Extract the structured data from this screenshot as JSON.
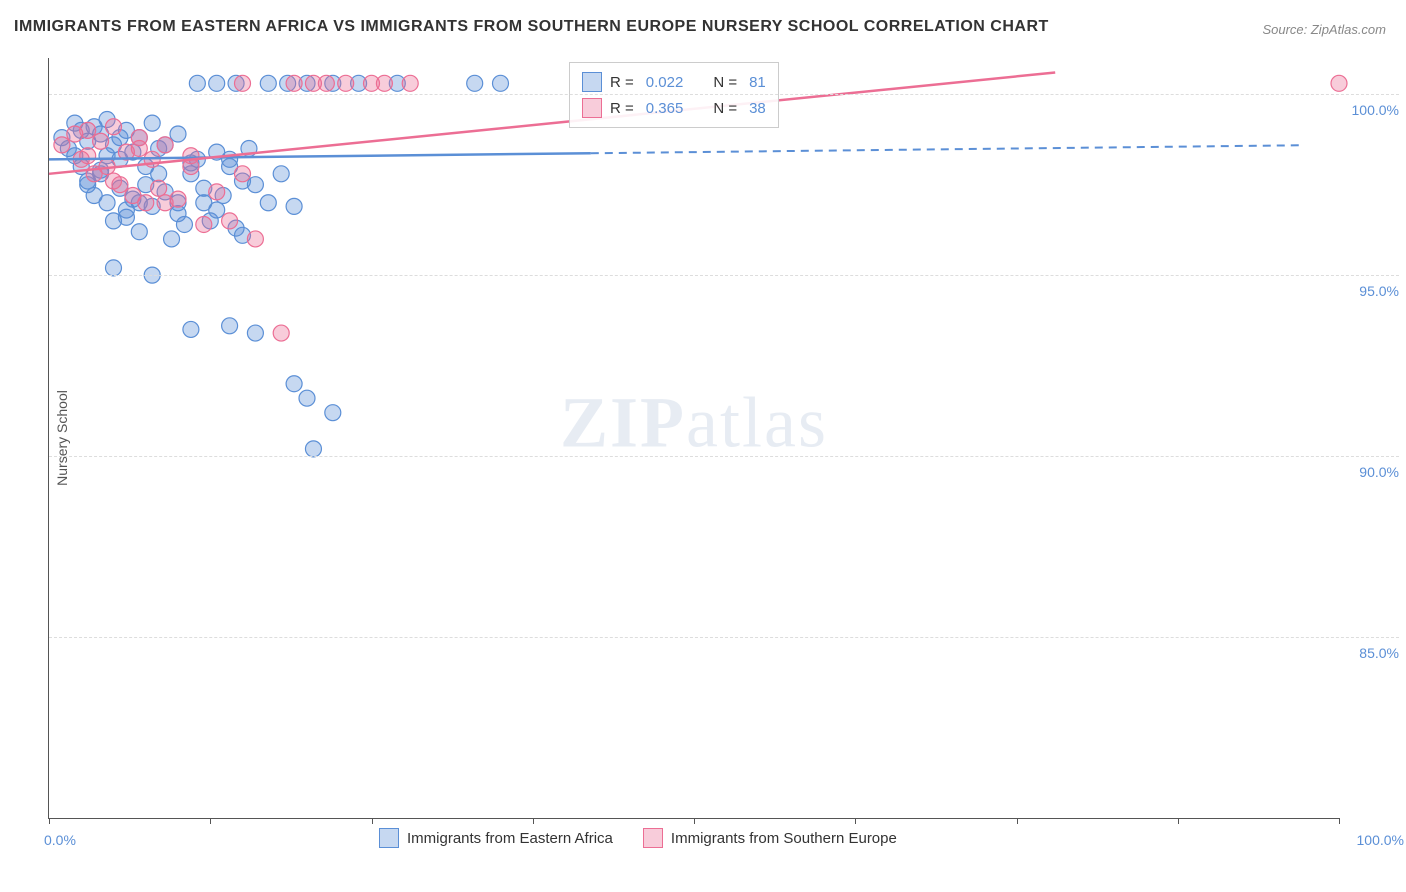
{
  "title": "IMMIGRANTS FROM EASTERN AFRICA VS IMMIGRANTS FROM SOUTHERN EUROPE NURSERY SCHOOL CORRELATION CHART",
  "source_label": "Source: ",
  "source_value": "ZipAtlas.com",
  "y_axis_title": "Nursery School",
  "watermark_bold": "ZIP",
  "watermark_light": "atlas",
  "chart": {
    "type": "scatter-with-trendlines",
    "background_color": "#ffffff",
    "grid_color": "#dddddd",
    "axis_color": "#555555",
    "label_color": "#5b8fd6",
    "xlim": [
      0,
      100
    ],
    "ylim": [
      80,
      101
    ],
    "y_ticks": [
      85.0,
      90.0,
      95.0,
      100.0
    ],
    "y_tick_labels": [
      "85.0%",
      "90.0%",
      "95.0%",
      "100.0%"
    ],
    "x_ticks": [
      0,
      12.5,
      25,
      37.5,
      50,
      62.5,
      75,
      87.5,
      100
    ],
    "x_label_min": "0.0%",
    "x_label_max": "100.0%",
    "marker_radius": 8,
    "marker_stroke_width": 1.2,
    "marker_fill_opacity": 0.35,
    "series": [
      {
        "name": "Immigrants from Eastern Africa",
        "color": "#5b8fd6",
        "fill": "rgba(91,143,214,0.35)",
        "R": "0.022",
        "N": "81",
        "trend": {
          "x1": 0,
          "y1": 98.2,
          "x2": 100,
          "y2": 98.6,
          "solid_until_x": 42
        },
        "points": [
          [
            1,
            98.8
          ],
          [
            1.5,
            98.5
          ],
          [
            2,
            99.2
          ],
          [
            2,
            98.3
          ],
          [
            2.5,
            99.0
          ],
          [
            2.5,
            98.0
          ],
          [
            3,
            98.7
          ],
          [
            3,
            97.6
          ],
          [
            3.5,
            99.1
          ],
          [
            3.5,
            97.2
          ],
          [
            4,
            98.9
          ],
          [
            4,
            97.8
          ],
          [
            4.5,
            99.3
          ],
          [
            4.5,
            97.0
          ],
          [
            5,
            98.6
          ],
          [
            5,
            96.5
          ],
          [
            5.5,
            98.2
          ],
          [
            5.5,
            97.4
          ],
          [
            6,
            99.0
          ],
          [
            6,
            96.8
          ],
          [
            6.5,
            98.4
          ],
          [
            6.5,
            97.1
          ],
          [
            7,
            98.8
          ],
          [
            7,
            96.2
          ],
          [
            7.5,
            98.0
          ],
          [
            7.5,
            97.5
          ],
          [
            8,
            99.2
          ],
          [
            8,
            96.9
          ],
          [
            8.5,
            97.8
          ],
          [
            9,
            98.6
          ],
          [
            9,
            97.3
          ],
          [
            9.5,
            96.0
          ],
          [
            10,
            98.9
          ],
          [
            10,
            97.0
          ],
          [
            10.5,
            96.4
          ],
          [
            11,
            97.8
          ],
          [
            11.5,
            98.2
          ],
          [
            12,
            97.0
          ],
          [
            12.5,
            96.5
          ],
          [
            13,
            98.4
          ],
          [
            13.5,
            97.2
          ],
          [
            14,
            98.0
          ],
          [
            14.5,
            96.3
          ],
          [
            15,
            97.6
          ],
          [
            15.5,
            98.5
          ],
          [
            5,
            95.2
          ],
          [
            8,
            95.0
          ],
          [
            11,
            93.5
          ],
          [
            14,
            93.6
          ],
          [
            16,
            93.4
          ],
          [
            11.5,
            100.3
          ],
          [
            13,
            100.3
          ],
          [
            14.5,
            100.3
          ],
          [
            17,
            100.3
          ],
          [
            18.5,
            100.3
          ],
          [
            20,
            100.3
          ],
          [
            22,
            100.3
          ],
          [
            24,
            100.3
          ],
          [
            27,
            100.3
          ],
          [
            33,
            100.3
          ],
          [
            35,
            100.3
          ],
          [
            19,
            92.0
          ],
          [
            20,
            91.6
          ],
          [
            22,
            91.2
          ],
          [
            20.5,
            90.2
          ],
          [
            4,
            97.9
          ],
          [
            5.5,
            98.8
          ],
          [
            7,
            97.0
          ],
          [
            8.5,
            98.5
          ],
          [
            10,
            96.7
          ],
          [
            11,
            98.1
          ],
          [
            12,
            97.4
          ],
          [
            13,
            96.8
          ],
          [
            14,
            98.2
          ],
          [
            15,
            96.1
          ],
          [
            16,
            97.5
          ],
          [
            17,
            97.0
          ],
          [
            18,
            97.8
          ],
          [
            19,
            96.9
          ],
          [
            3,
            97.5
          ],
          [
            4.5,
            98.3
          ],
          [
            6,
            96.6
          ]
        ]
      },
      {
        "name": "Immigrants from Southern Europe",
        "color": "#ec6e94",
        "fill": "rgba(236,110,148,0.35)",
        "R": "0.365",
        "N": "38",
        "trend": {
          "x1": 0,
          "y1": 97.8,
          "x2": 78,
          "y2": 100.6,
          "solid_until_x": 78
        },
        "points": [
          [
            1,
            98.6
          ],
          [
            2,
            98.9
          ],
          [
            2.5,
            98.2
          ],
          [
            3,
            99.0
          ],
          [
            3.5,
            97.8
          ],
          [
            4,
            98.7
          ],
          [
            4.5,
            98.0
          ],
          [
            5,
            99.1
          ],
          [
            5.5,
            97.5
          ],
          [
            6,
            98.4
          ],
          [
            6.5,
            97.2
          ],
          [
            7,
            98.8
          ],
          [
            7.5,
            97.0
          ],
          [
            8,
            98.2
          ],
          [
            8.5,
            97.4
          ],
          [
            9,
            98.6
          ],
          [
            10,
            97.1
          ],
          [
            11,
            98.0
          ],
          [
            12,
            96.4
          ],
          [
            13,
            97.3
          ],
          [
            14,
            96.5
          ],
          [
            15,
            97.8
          ],
          [
            16,
            96.0
          ],
          [
            18,
            93.4
          ],
          [
            15,
            100.3
          ],
          [
            19,
            100.3
          ],
          [
            20.5,
            100.3
          ],
          [
            21.5,
            100.3
          ],
          [
            23,
            100.3
          ],
          [
            25,
            100.3
          ],
          [
            26,
            100.3
          ],
          [
            28,
            100.3
          ],
          [
            100,
            100.3
          ],
          [
            3,
            98.3
          ],
          [
            5,
            97.6
          ],
          [
            7,
            98.5
          ],
          [
            9,
            97.0
          ],
          [
            11,
            98.3
          ]
        ]
      }
    ],
    "legend_box": {
      "rows": [
        {
          "color": "#5b8fd6",
          "fill": "rgba(91,143,214,0.35)",
          "r_label": "R =",
          "r_val": "0.022",
          "n_label": "N =",
          "n_val": "81"
        },
        {
          "color": "#ec6e94",
          "fill": "rgba(236,110,148,0.35)",
          "r_label": "R =",
          "r_val": "0.365",
          "n_label": "N =",
          "n_val": "38"
        }
      ]
    },
    "bottom_legend": [
      {
        "color": "#5b8fd6",
        "fill": "rgba(91,143,214,0.35)",
        "label": "Immigrants from Eastern Africa"
      },
      {
        "color": "#ec6e94",
        "fill": "rgba(236,110,148,0.35)",
        "label": "Immigrants from Southern Europe"
      }
    ]
  }
}
